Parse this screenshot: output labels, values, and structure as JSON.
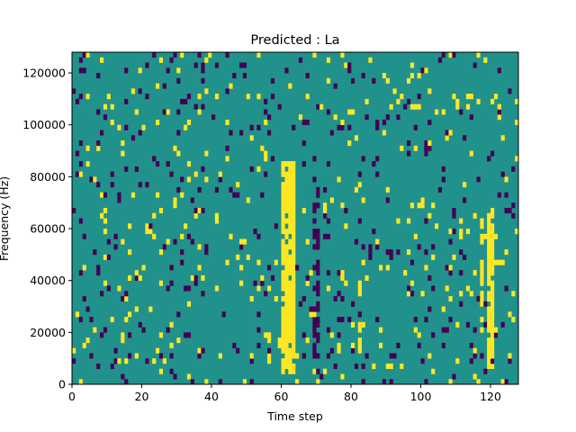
{
  "chart_data": {
    "type": "heatmap",
    "title": "Predicted : La",
    "xlabel": "Time step",
    "ylabel": "Frequency (Hz)",
    "xlim": [
      0,
      128
    ],
    "ylim": [
      0,
      128000
    ],
    "xticks": [
      0,
      20,
      40,
      60,
      80,
      100,
      120
    ],
    "xtick_labels": [
      "0",
      "20",
      "40",
      "60",
      "80",
      "100",
      "120"
    ],
    "yticks": [
      0,
      20000,
      40000,
      60000,
      80000,
      100000,
      120000
    ],
    "ytick_labels": [
      "0",
      "20000",
      "40000",
      "60000",
      "80000",
      "100000",
      "120000"
    ],
    "rows": 64,
    "colormap": {
      "low": "#440154",
      "mid": "#21918c",
      "high": "#fde725"
    },
    "background_value": 0,
    "bright_bands": [
      {
        "x_start": 60,
        "x_end": 64,
        "y_start": 4000,
        "y_end": 86000
      },
      {
        "x_start": 119,
        "x_end": 121,
        "y_start": 6000,
        "y_end": 70000
      }
    ],
    "secondary_bands": [
      {
        "x_start": 82,
        "x_end": 83,
        "y_start": 12000,
        "y_end": 40000
      },
      {
        "x_start": 117,
        "x_end": 118,
        "y_start": 20000,
        "y_end": 66000
      }
    ],
    "dark_band": {
      "x_start": 69,
      "x_end": 71,
      "y_start": 4000,
      "y_end": 84000
    },
    "scatter_density": 0.085,
    "seed": 7
  }
}
